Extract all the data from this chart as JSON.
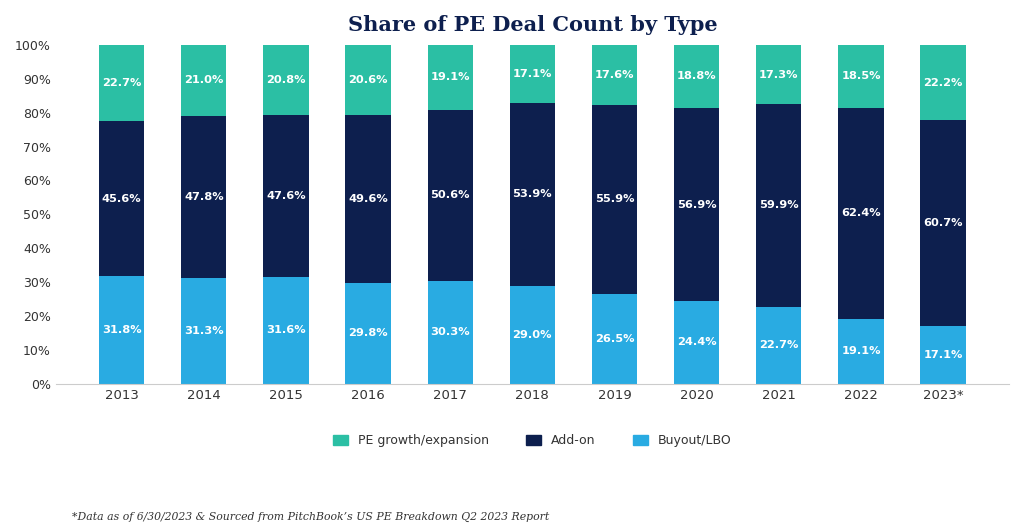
{
  "years": [
    "2013",
    "2014",
    "2015",
    "2016",
    "2017",
    "2018",
    "2019",
    "2020",
    "2021",
    "2022",
    "2023*"
  ],
  "buyout_lbo": [
    31.8,
    31.3,
    31.6,
    29.8,
    30.3,
    29.0,
    26.5,
    24.4,
    22.7,
    19.1,
    17.1
  ],
  "addon": [
    45.6,
    47.8,
    47.6,
    49.6,
    50.6,
    53.9,
    55.9,
    56.9,
    59.9,
    62.4,
    60.7
  ],
  "pe_growth": [
    22.7,
    21.0,
    20.8,
    20.6,
    19.1,
    17.1,
    17.6,
    18.8,
    17.3,
    18.5,
    22.2
  ],
  "color_buyout": "#29ABE2",
  "color_addon": "#0D1F4E",
  "color_pe_growth": "#2BBFA4",
  "title": "Share of PE Deal Count by Type",
  "title_fontsize": 15,
  "label_fontsize": 8.2,
  "legend_labels": [
    "PE growth/expansion",
    "Add-on",
    "Buyout/LBO"
  ],
  "footnote": "*Data as of 6/30/2023 & Sourced from PitchBook’s US PE Breakdown Q2 2023 Report",
  "ylim": [
    0,
    100
  ],
  "bar_width": 0.55,
  "background_color": "#FFFFFF",
  "axis_color": "#1A2E5A",
  "text_color": "#FFFFFF",
  "tick_label_color": "#333333",
  "footnote_color": "#333333"
}
